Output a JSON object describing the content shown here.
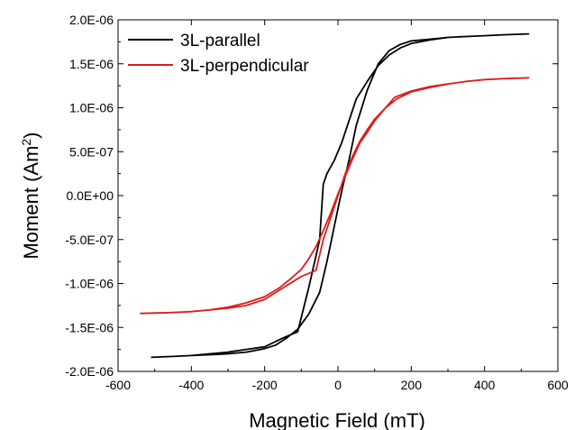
{
  "chart_data": {
    "type": "line",
    "title": "",
    "xlabel": "Magnetic Field (mT)",
    "ylabel_main": "Moment (Am",
    "ylabel_sup": "2",
    "ylabel_end": ")",
    "xlim": [
      -600,
      600
    ],
    "ylim": [
      -2e-06,
      2e-06
    ],
    "x_ticks": [
      -600,
      -400,
      -200,
      0,
      200,
      400,
      600
    ],
    "x_tick_labels": [
      "-600",
      "-400",
      "-200",
      "0",
      "200",
      "400",
      "600"
    ],
    "y_ticks": [
      -2e-06,
      -1.5e-06,
      -1e-06,
      -5e-07,
      0,
      5e-07,
      1e-06,
      1.5e-06,
      2e-06
    ],
    "y_tick_labels": [
      "-2.0E-06",
      "-1.5E-06",
      "-1.0E-06",
      "-5.0E-07",
      "0.0E+00",
      "5.0E-07",
      "1.0E-06",
      "1.5E-06",
      "2.0E-06"
    ],
    "grid": false,
    "legend_position": "top-left",
    "series": [
      {
        "name": "3L-parallel",
        "color": "#000000",
        "x": [
          -510,
          -450,
          -400,
          -350,
          -300,
          -250,
          -200,
          -150,
          -110,
          -80,
          -50,
          -40,
          -30,
          -10,
          10,
          30,
          50,
          80,
          110,
          140,
          170,
          200,
          250,
          300,
          350,
          400,
          450,
          520,
          450,
          400,
          350,
          300,
          250,
          200,
          170,
          140,
          110,
          80,
          50,
          30,
          10,
          -10,
          -30,
          -50,
          -80,
          -110,
          -140,
          -170,
          -200,
          -250,
          -300,
          -350,
          -400,
          -450,
          -510
        ],
        "y": [
          -1.84e-06,
          -1.83e-06,
          -1.82e-06,
          -1.8e-06,
          -1.78e-06,
          -1.75e-06,
          -1.72e-06,
          -1.62e-06,
          -1.55e-06,
          -1.05e-06,
          -5e-07,
          1.3e-07,
          2.5e-07,
          4e-07,
          6e-07,
          8.5e-07,
          1.1e-06,
          1.3e-06,
          1.48e-06,
          1.6e-06,
          1.68e-06,
          1.73e-06,
          1.77e-06,
          1.8e-06,
          1.81e-06,
          1.82e-06,
          1.83e-06,
          1.84e-06,
          1.83e-06,
          1.82e-06,
          1.81e-06,
          1.8e-06,
          1.78e-06,
          1.76e-06,
          1.72e-06,
          1.65e-06,
          1.5e-06,
          1.2e-06,
          8e-07,
          4e-07,
          5e-08,
          -3.5e-07,
          -7.5e-07,
          -1.1e-06,
          -1.35e-06,
          -1.52e-06,
          -1.62e-06,
          -1.7e-06,
          -1.74e-06,
          -1.78e-06,
          -1.8e-06,
          -1.81e-06,
          -1.82e-06,
          -1.83e-06,
          -1.84e-06
        ]
      },
      {
        "name": "3L-perpendicular",
        "color": "#dd1c1c",
        "x": [
          -540,
          -450,
          -400,
          -350,
          -300,
          -250,
          -200,
          -150,
          -100,
          -60,
          -40,
          -20,
          0,
          20,
          40,
          60,
          80,
          100,
          130,
          160,
          200,
          250,
          300,
          350,
          400,
          450,
          520,
          450,
          400,
          350,
          300,
          250,
          200,
          155,
          130,
          100,
          80,
          60,
          40,
          20,
          0,
          -20,
          -40,
          -60,
          -80,
          -100,
          -130,
          -160,
          -200,
          -250,
          -300,
          -350,
          -400,
          -450,
          -540
        ],
        "y": [
          -1.34e-06,
          -1.33e-06,
          -1.32e-06,
          -1.3e-06,
          -1.28e-06,
          -1.25e-06,
          -1.18e-06,
          -1.05e-06,
          -9.2e-07,
          -8.5e-07,
          -5e-07,
          -2.5e-07,
          0.0,
          2.5e-07,
          4.5e-07,
          6.2e-07,
          7.5e-07,
          8.7e-07,
          1e-06,
          1.1e-06,
          1.18e-06,
          1.23e-06,
          1.27e-06,
          1.3e-06,
          1.32e-06,
          1.33e-06,
          1.34e-06,
          1.33e-06,
          1.32e-06,
          1.3e-06,
          1.27e-06,
          1.24e-06,
          1.19e-06,
          1.12e-06,
          1e-06,
          8.5e-07,
          7.2e-07,
          6e-07,
          4.2e-07,
          2.2e-07,
          2e-08,
          -2e-07,
          -4e-07,
          -5.8e-07,
          -7.2e-07,
          -8.4e-07,
          -9.5e-07,
          -1.05e-06,
          -1.15e-06,
          -1.22e-06,
          -1.27e-06,
          -1.3e-06,
          -1.32e-06,
          -1.33e-06,
          -1.34e-06
        ]
      }
    ]
  }
}
